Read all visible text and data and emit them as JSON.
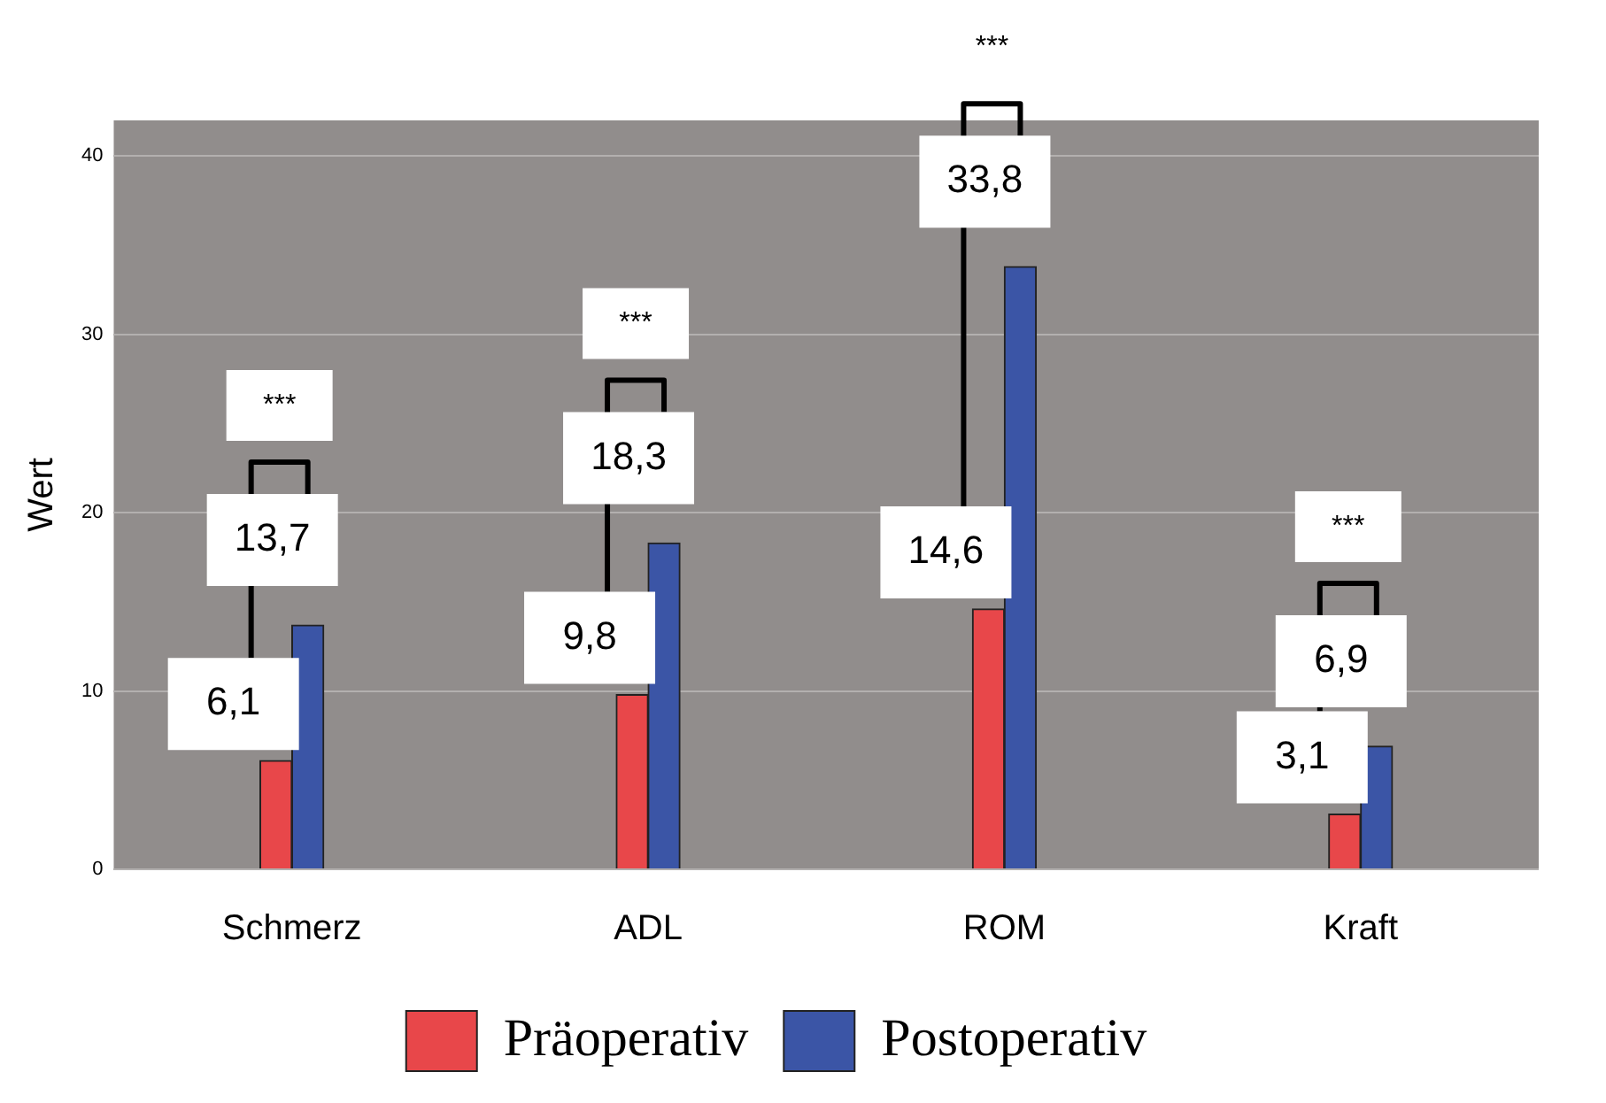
{
  "chart_data": {
    "type": "bar",
    "ylabel": "Wert",
    "categories": [
      "Schmerz",
      "ADL",
      "ROM",
      "Kraft"
    ],
    "series": [
      {
        "name": "Präoperativ",
        "color": "#e8474a",
        "values": [
          6.1,
          9.8,
          14.6,
          3.1
        ],
        "value_labels": [
          "6,1",
          "9,8",
          "14,6",
          "3,1"
        ]
      },
      {
        "name": "Postoperativ",
        "color": "#3b55a6",
        "values": [
          13.7,
          18.3,
          33.8,
          6.9
        ],
        "value_labels": [
          "13,7",
          "18,3",
          "33,8",
          "6,9"
        ]
      }
    ],
    "annotations": [
      "***",
      "***",
      "***",
      "***"
    ],
    "ylim": [
      0,
      42
    ],
    "yticks": [
      0,
      10,
      20,
      30,
      40
    ],
    "grid": "y",
    "legend": "bottom"
  }
}
